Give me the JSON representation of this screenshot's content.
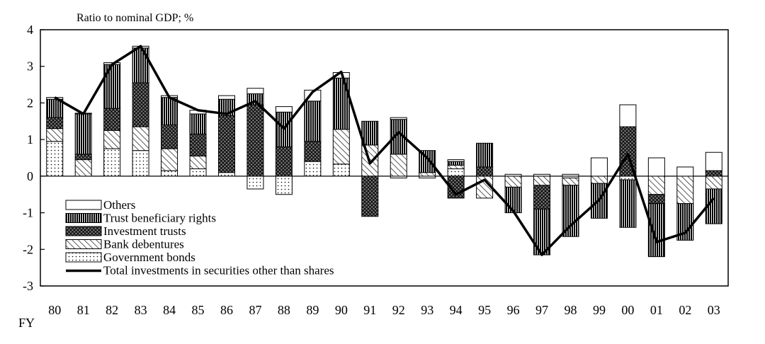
{
  "chart_data": {
    "type": "bar",
    "subtype": "stacked-bar-with-line",
    "ylabel": "Ratio to nominal GDP; %",
    "xlabel": "FY",
    "ylim": [
      -3,
      4
    ],
    "yticks": [
      "4",
      "3",
      "2",
      "1",
      "0",
      "-1",
      "-2",
      "-3"
    ],
    "categories": [
      "80",
      "81",
      "82",
      "83",
      "84",
      "85",
      "86",
      "87",
      "88",
      "89",
      "90",
      "91",
      "92",
      "93",
      "94",
      "95",
      "96",
      "97",
      "98",
      "99",
      "00",
      "01",
      "02",
      "03"
    ],
    "series": [
      {
        "name": "Government bonds",
        "pattern": "dots",
        "values": [
          0.95,
          0.0,
          0.75,
          0.7,
          0.15,
          0.2,
          0.1,
          -0.35,
          -0.5,
          0.4,
          0.33,
          0.0,
          -0.05,
          -0.05,
          0.2,
          0.0,
          0.0,
          0.0,
          -0.05,
          0.0,
          -0.1,
          0.0,
          0.0,
          0.0
        ]
      },
      {
        "name": "Bank debentures",
        "pattern": "diagonal",
        "values": [
          0.35,
          0.45,
          0.5,
          0.65,
          0.6,
          0.35,
          0.0,
          0.0,
          0.0,
          0.0,
          0.95,
          0.85,
          0.6,
          0.1,
          0.1,
          -0.6,
          -0.3,
          -0.25,
          -0.2,
          -0.2,
          0.0,
          -0.5,
          -0.75,
          -0.35
        ]
      },
      {
        "name": "Investment trusts",
        "pattern": "crosshatch",
        "values": [
          0.3,
          0.15,
          0.6,
          1.2,
          0.65,
          0.6,
          1.55,
          1.95,
          0.8,
          0.55,
          0.0,
          -1.1,
          0.0,
          0.0,
          -0.6,
          0.25,
          0.0,
          -0.65,
          0.0,
          0.0,
          1.35,
          -0.25,
          0.0,
          0.15
        ]
      },
      {
        "name": "Trust beneficiary rights",
        "pattern": "vertical",
        "values": [
          0.5,
          1.1,
          1.2,
          0.95,
          0.75,
          0.55,
          0.45,
          0.3,
          0.95,
          1.1,
          1.4,
          0.65,
          0.95,
          0.6,
          0.1,
          0.65,
          -0.7,
          -1.25,
          -1.4,
          -0.95,
          -1.3,
          -1.45,
          -1.0,
          -0.95
        ]
      },
      {
        "name": "Others",
        "pattern": "blank",
        "values": [
          0.05,
          0.02,
          0.05,
          0.05,
          0.05,
          0.1,
          0.1,
          0.15,
          0.15,
          0.3,
          0.15,
          0.0,
          0.05,
          0.0,
          0.05,
          0.0,
          0.05,
          0.05,
          0.05,
          0.5,
          0.6,
          0.5,
          0.25,
          0.5
        ]
      }
    ],
    "total_line": {
      "name": "Total investments in securities other than shares",
      "values": [
        2.15,
        1.7,
        3.05,
        3.55,
        2.15,
        1.8,
        1.7,
        2.05,
        1.3,
        2.3,
        2.85,
        0.35,
        1.2,
        0.5,
        -0.5,
        -0.1,
        -0.95,
        -2.15,
        -1.35,
        -0.65,
        0.6,
        -1.8,
        -1.55,
        -0.6
      ]
    },
    "legend": {
      "placement": "bottom-left",
      "entries": [
        "Others",
        "Trust beneficiary rights",
        "Investment trusts",
        "Bank debentures",
        "Government bonds",
        "Total investments in securities other than shares"
      ]
    },
    "grid": false
  }
}
